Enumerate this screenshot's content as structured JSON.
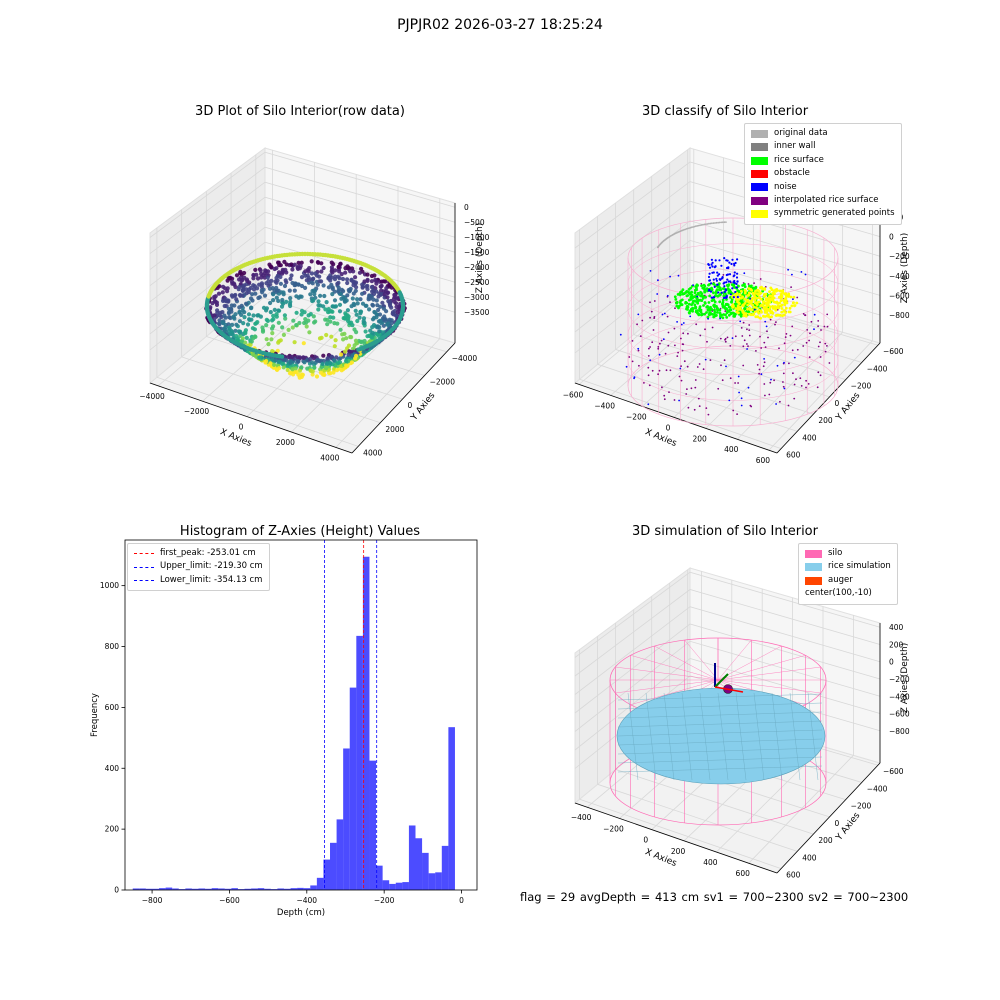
{
  "suptitle": "PJPJR02 2026-03-27 18:25:24",
  "footer": "flag = 29  avgDepth = 413 cm  sv1 = 700~2300  sv2 = 700~2300",
  "panels": {
    "p1": {
      "title": "3D Plot of Silo Interior(row data)",
      "xlabel": "X Axies",
      "ylabel": "Y Axies",
      "zlabel": "Z Axies (Depth)",
      "xticks": [
        "−4000",
        "−2000",
        "0",
        "2000",
        "4000"
      ],
      "yticks": [
        "−4000",
        "−2000",
        "0",
        "2000",
        "4000"
      ],
      "zticks": [
        "0",
        "−500",
        "−1000",
        "−1500",
        "−2000",
        "−2500",
        "−3000",
        "−3500"
      ]
    },
    "p2": {
      "title": "3D classify of Silo Interior",
      "xlabel": "X Axies",
      "ylabel": "Y Axies",
      "zlabel": "Z Axies (Depth)",
      "xticks": [
        "−600",
        "−400",
        "−200",
        "0",
        "200",
        "400",
        "600"
      ],
      "yticks": [
        "−600",
        "−400",
        "−200",
        "0",
        "200",
        "400",
        "600"
      ],
      "zticks": [
        "200",
        "0",
        "−200",
        "−400",
        "−600",
        "−800"
      ],
      "legend": [
        {
          "label": "original data",
          "color": "#b0b0b0"
        },
        {
          "label": "inner wall",
          "color": "#808080"
        },
        {
          "label": "rice surface",
          "color": "#00ff00"
        },
        {
          "label": "obstacle",
          "color": "#ff0000"
        },
        {
          "label": "noise",
          "color": "#0000ff"
        },
        {
          "label": "interpolated rice surface",
          "color": "#800080"
        },
        {
          "label": "symmetric generated points",
          "color": "#ffff00"
        }
      ]
    },
    "p3": {
      "title": "Histogram of Z-Axies (Height) Values",
      "legend": [
        {
          "label": "first_peak: -253.01 cm",
          "color": "#ff0000"
        },
        {
          "label": "Upper_limit: -219.30 cm",
          "color": "#0000ff"
        },
        {
          "label": "Lower_limit: -354.13 cm",
          "color": "#0000ff"
        }
      ]
    },
    "p4": {
      "title": "3D simulation of Silo Interior",
      "xlabel": "X Axies",
      "ylabel": "Y Axies",
      "zlabel": "Z Axies (Depth)",
      "xticks": [
        "−400",
        "−200",
        "0",
        "200",
        "400",
        "600"
      ],
      "yticks": [
        "−600",
        "−400",
        "−200",
        "0",
        "200",
        "400",
        "600"
      ],
      "zticks": [
        "400",
        "200",
        "0",
        "−200",
        "−400",
        "−600",
        "−800"
      ],
      "legend": [
        {
          "label": "silo",
          "color": "#ff69b4"
        },
        {
          "label": "rice simulation",
          "color": "#87ceeb"
        },
        {
          "label": "auger",
          "color": "#ff4500"
        },
        {
          "label": "center(100,-10)",
          "color": ""
        }
      ]
    }
  },
  "chart_data": [
    {
      "type": "scatter",
      "title": "3D Plot of Silo Interior(row data)",
      "xlabel": "X Axies",
      "ylabel": "Y Axies",
      "zlabel": "Z Axies (Depth)",
      "xlim": [
        -4500,
        4500
      ],
      "ylim": [
        -4500,
        4500
      ],
      "zlim": [
        -4000,
        200
      ],
      "colormap": "viridis"
    },
    {
      "type": "scatter",
      "title": "3D classify of Silo Interior",
      "xlabel": "X Axies",
      "ylabel": "Y Axies",
      "zlabel": "Z Axies (Depth)",
      "xlim": [
        -600,
        600
      ],
      "ylim": [
        -600,
        600
      ],
      "zlim": [
        -900,
        300
      ],
      "legend": "top-right"
    },
    {
      "type": "bar",
      "title": "Histogram of Z-Axies (Height) Values",
      "xlabel": "Depth (cm)",
      "ylabel": "Frequency",
      "xlim": [
        -870,
        40
      ],
      "ylim": [
        0,
        1150
      ],
      "xticks": [
        -800,
        -600,
        -400,
        -200,
        0
      ],
      "yticks": [
        0,
        200,
        400,
        600,
        800,
        1000
      ],
      "bin_width": 17,
      "bins": [
        {
          "x0": -850,
          "count": 5
        },
        {
          "x0": -833,
          "count": 5
        },
        {
          "x0": -816,
          "count": 4
        },
        {
          "x0": -799,
          "count": 4
        },
        {
          "x0": -782,
          "count": 6
        },
        {
          "x0": -765,
          "count": 8
        },
        {
          "x0": -748,
          "count": 5
        },
        {
          "x0": -731,
          "count": 3
        },
        {
          "x0": -714,
          "count": 5
        },
        {
          "x0": -697,
          "count": 4
        },
        {
          "x0": -680,
          "count": 5
        },
        {
          "x0": -663,
          "count": 4
        },
        {
          "x0": -646,
          "count": 6
        },
        {
          "x0": -629,
          "count": 5
        },
        {
          "x0": -612,
          "count": 4
        },
        {
          "x0": -595,
          "count": 6
        },
        {
          "x0": -578,
          "count": 3
        },
        {
          "x0": -561,
          "count": 4
        },
        {
          "x0": -544,
          "count": 5
        },
        {
          "x0": -527,
          "count": 6
        },
        {
          "x0": -510,
          "count": 4
        },
        {
          "x0": -493,
          "count": 3
        },
        {
          "x0": -476,
          "count": 5
        },
        {
          "x0": -459,
          "count": 4
        },
        {
          "x0": -442,
          "count": 6
        },
        {
          "x0": -425,
          "count": 7
        },
        {
          "x0": -408,
          "count": 6
        },
        {
          "x0": -391,
          "count": 15
        },
        {
          "x0": -374,
          "count": 40
        },
        {
          "x0": -357,
          "count": 100
        },
        {
          "x0": -340,
          "count": 155
        },
        {
          "x0": -323,
          "count": 232
        },
        {
          "x0": -306,
          "count": 465
        },
        {
          "x0": -289,
          "count": 665
        },
        {
          "x0": -272,
          "count": 835
        },
        {
          "x0": -255,
          "count": 1095
        },
        {
          "x0": -238,
          "count": 425
        },
        {
          "x0": -221,
          "count": 80
        },
        {
          "x0": -204,
          "count": 32
        },
        {
          "x0": -187,
          "count": 20
        },
        {
          "x0": -170,
          "count": 24
        },
        {
          "x0": -153,
          "count": 26
        },
        {
          "x0": -136,
          "count": 212
        },
        {
          "x0": -119,
          "count": 170
        },
        {
          "x0": -102,
          "count": 122
        },
        {
          "x0": -85,
          "count": 55
        },
        {
          "x0": -68,
          "count": 58
        },
        {
          "x0": -51,
          "count": 145
        },
        {
          "x0": -34,
          "count": 535
        }
      ],
      "vlines": [
        {
          "name": "first_peak: -253.01 cm",
          "x": -253.01,
          "color": "#ff0000"
        },
        {
          "name": "Upper_limit: -219.30 cm",
          "x": -219.3,
          "color": "#0000ff"
        },
        {
          "name": "Lower_limit: -354.13 cm",
          "x": -354.13,
          "color": "#0000ff"
        }
      ],
      "bar_color": "#0000ff",
      "legend": "top-left"
    },
    {
      "type": "scatter",
      "title": "3D simulation of Silo Interior",
      "xlabel": "X Axies",
      "ylabel": "Y Axies",
      "zlabel": "Z Axies (Depth)",
      "xlim": [
        -500,
        700
      ],
      "ylim": [
        -700,
        700
      ],
      "zlim": [
        -900,
        450
      ],
      "legend": "top-right"
    }
  ]
}
